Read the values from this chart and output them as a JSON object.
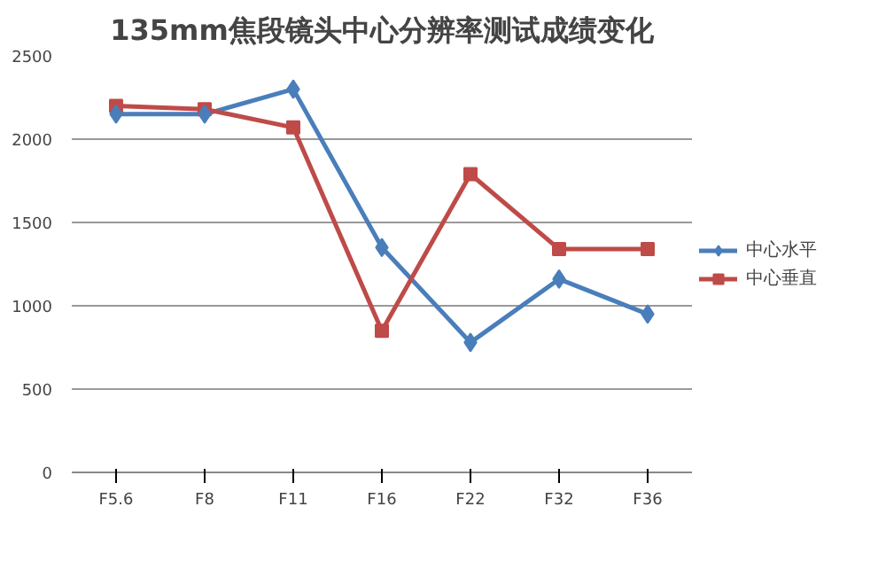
{
  "chart_data": {
    "type": "line",
    "title": "135mm焦段镜头中心分辨率测试成绩变化",
    "categories": [
      "F5.6",
      "F8",
      "F11",
      "F16",
      "F22",
      "F32",
      "F36"
    ],
    "series": [
      {
        "name": "中心水平",
        "color": "#4a7ebb",
        "marker": "diamond",
        "values": [
          2150,
          2150,
          2300,
          1350,
          780,
          1160,
          950
        ]
      },
      {
        "name": "中心垂直",
        "color": "#be4b48",
        "marker": "square",
        "values": [
          2200,
          2180,
          2070,
          850,
          1790,
          1340,
          1340
        ]
      }
    ],
    "ylim": [
      0,
      2500
    ],
    "yticks": [
      0,
      500,
      1000,
      1500,
      2000,
      2500
    ],
    "grid": "y",
    "legend": "right"
  }
}
